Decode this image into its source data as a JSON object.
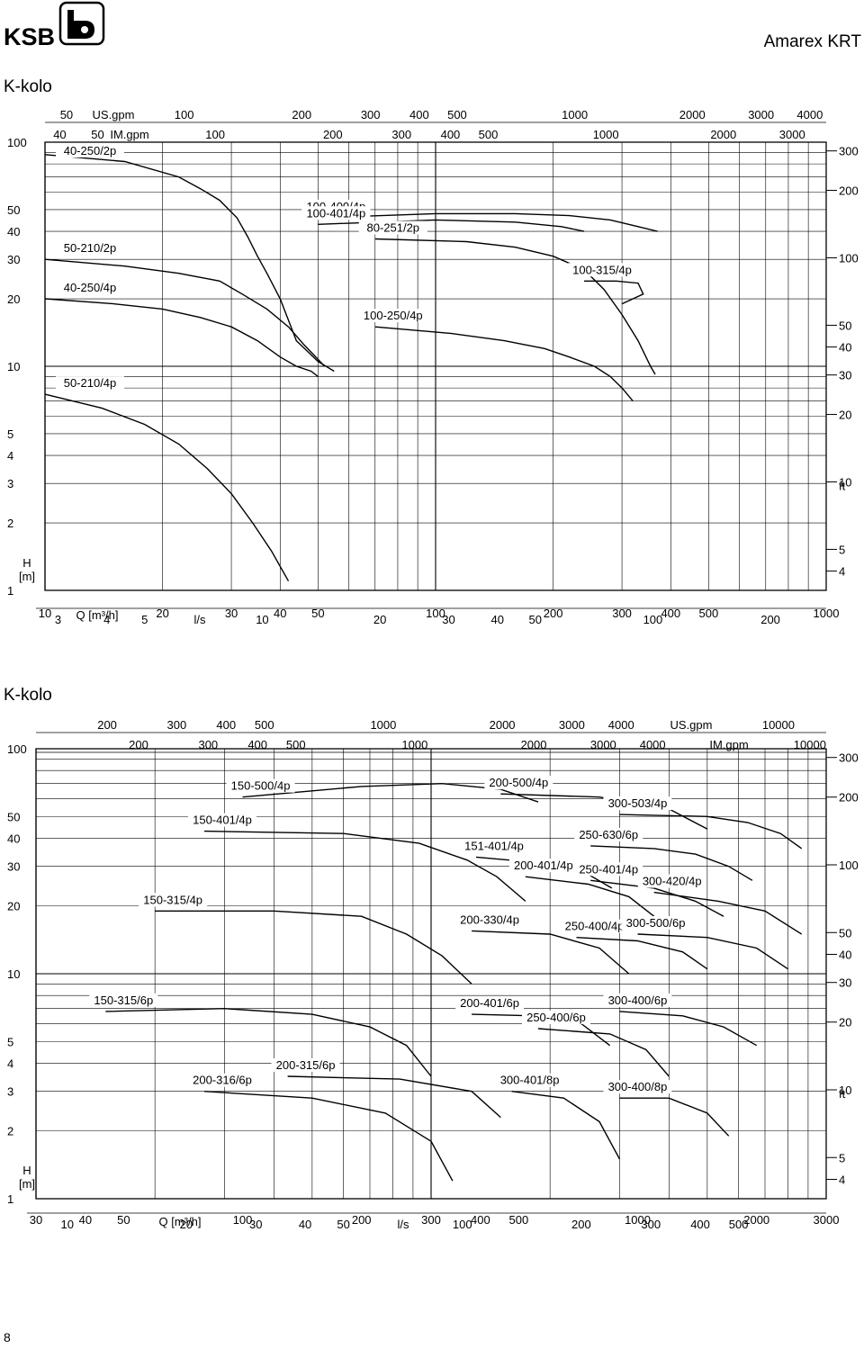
{
  "header": {
    "brand": "KSB",
    "product_name": "Amarex",
    "product_suffix": "KRT"
  },
  "page_number": "8",
  "chart_data": [
    {
      "type": "line",
      "title": "K-kolo",
      "scale": "log-log",
      "grid": true,
      "xlabel": "Q [m³/h]",
      "ylabel": "H [m]",
      "xlim": [
        10,
        1000
      ],
      "ylim": [
        1,
        100
      ],
      "x_ticks": [
        10,
        20,
        30,
        40,
        50,
        100,
        200,
        300,
        400,
        500,
        1000
      ],
      "y_ticks": [
        1,
        2,
        3,
        4,
        5,
        10,
        20,
        30,
        40,
        50,
        100
      ],
      "secondary_axes": {
        "us_gpm": {
          "label": "US.gpm",
          "ticks": [
            50,
            100,
            200,
            300,
            400,
            500,
            1000,
            2000,
            3000,
            4000
          ]
        },
        "im_gpm": {
          "label": "IM.gpm",
          "ticks": [
            40,
            50,
            100,
            200,
            300,
            400,
            500,
            1000,
            2000,
            3000
          ]
        },
        "l_s": {
          "label": "l/s",
          "ticks": [
            3,
            4,
            5,
            10,
            20,
            30,
            40,
            50,
            100,
            200
          ]
        },
        "ft": {
          "label": "ft",
          "ticks": [
            4,
            5,
            10,
            20,
            30,
            40,
            50,
            100,
            200,
            300
          ]
        }
      },
      "series": [
        {
          "name": "40-250/2p",
          "points": [
            [
              10,
              88
            ],
            [
              16,
              82
            ],
            [
              22,
              70
            ],
            [
              25,
              62
            ],
            [
              28,
              55
            ],
            [
              31,
              46
            ],
            [
              33,
              38
            ],
            [
              35,
              31
            ],
            [
              37,
              26
            ],
            [
              40,
              20
            ],
            [
              44,
              13
            ],
            [
              50,
              10.5
            ],
            [
              55,
              9.5
            ]
          ]
        },
        {
          "name": "50-210/2p",
          "points": [
            [
              10,
              30
            ],
            [
              16,
              28
            ],
            [
              22,
              26
            ],
            [
              28,
              24
            ],
            [
              32,
              21
            ],
            [
              37,
              18
            ],
            [
              42,
              15
            ],
            [
              46,
              12.5
            ],
            [
              52,
              10
            ]
          ]
        },
        {
          "name": "80-251/2p",
          "points": [
            [
              70,
              37
            ],
            [
              120,
              36
            ],
            [
              160,
              34
            ],
            [
              200,
              31
            ],
            [
              240,
              27
            ],
            [
              270,
              22
            ],
            [
              300,
              17
            ],
            [
              330,
              13
            ],
            [
              355,
              10
            ],
            [
              365,
              9.2
            ]
          ]
        },
        {
          "name": "100-400/4p",
          "points": [
            [
              50,
              46
            ],
            [
              100,
              48
            ],
            [
              160,
              48
            ],
            [
              220,
              47
            ],
            [
              280,
              45
            ],
            [
              330,
              42
            ],
            [
              370,
              40
            ]
          ]
        },
        {
          "name": "100-401/4p",
          "points": [
            [
              50,
              43
            ],
            [
              100,
              45
            ],
            [
              160,
              44
            ],
            [
              210,
              42
            ],
            [
              240,
              40
            ]
          ]
        },
        {
          "name": "100-315/4p",
          "points": [
            [
              240,
              24
            ],
            [
              290,
              24
            ],
            [
              330,
              23.5
            ],
            [
              340,
              21
            ],
            [
              300,
              19
            ]
          ]
        },
        {
          "name": "100-250/4p",
          "points": [
            [
              70,
              15
            ],
            [
              110,
              14
            ],
            [
              150,
              13
            ],
            [
              190,
              12
            ],
            [
              220,
              11
            ],
            [
              255,
              10
            ],
            [
              280,
              9
            ],
            [
              300,
              8
            ],
            [
              320,
              7
            ]
          ]
        },
        {
          "name": "40-250/4p",
          "points": [
            [
              10,
              20
            ],
            [
              15,
              19
            ],
            [
              20,
              18
            ],
            [
              25,
              16.5
            ],
            [
              30,
              15
            ],
            [
              35,
              13
            ],
            [
              40,
              11
            ],
            [
              44,
              10
            ],
            [
              48,
              9.5
            ],
            [
              50,
              9
            ]
          ]
        },
        {
          "name": "50-210/4p",
          "points": [
            [
              10,
              7.5
            ],
            [
              14,
              6.5
            ],
            [
              18,
              5.5
            ],
            [
              22,
              4.5
            ],
            [
              26,
              3.5
            ],
            [
              30,
              2.7
            ],
            [
              34,
              2
            ],
            [
              38,
              1.5
            ],
            [
              42,
              1.1
            ]
          ]
        }
      ]
    },
    {
      "type": "line",
      "title": "K-kolo",
      "scale": "log-log",
      "grid": true,
      "xlabel": "Q [m³/h]",
      "ylabel": "H [m]",
      "xlim": [
        30,
        3000
      ],
      "ylim": [
        1,
        100
      ],
      "x_ticks": [
        30,
        40,
        50,
        100,
        200,
        300,
        400,
        500,
        1000,
        2000,
        3000
      ],
      "y_ticks": [
        1,
        2,
        3,
        4,
        5,
        10,
        20,
        30,
        40,
        50,
        100
      ],
      "secondary_axes": {
        "us_gpm": {
          "label": "US.gpm",
          "ticks": [
            200,
            300,
            400,
            500,
            1000,
            2000,
            3000,
            4000,
            10000
          ]
        },
        "im_gpm": {
          "label": "IM.gpm",
          "ticks": [
            200,
            300,
            400,
            500,
            1000,
            2000,
            3000,
            4000,
            10000
          ]
        },
        "l_s": {
          "label": "l/s",
          "ticks": [
            10,
            20,
            30,
            40,
            50,
            100,
            200,
            300,
            400,
            500
          ]
        },
        "ft": {
          "label": "ft",
          "ticks": [
            4,
            5,
            10,
            20,
            30,
            40,
            50,
            100,
            200,
            300
          ]
        }
      },
      "series": [
        {
          "name": "150-500/4p",
          "points": [
            [
              100,
              61
            ],
            [
              200,
              68
            ],
            [
              320,
              70
            ],
            [
              450,
              66
            ],
            [
              560,
              58
            ]
          ]
        },
        {
          "name": "200-500/4p",
          "points": [
            [
              450,
              63
            ],
            [
              800,
              61
            ],
            [
              1200,
              54
            ],
            [
              1500,
              44
            ]
          ]
        },
        {
          "name": "300-503/4p",
          "points": [
            [
              900,
              51
            ],
            [
              1500,
              50
            ],
            [
              1900,
              47
            ],
            [
              2300,
              42
            ],
            [
              2600,
              36
            ]
          ]
        },
        {
          "name": "250-630/6p",
          "points": [
            [
              760,
              37
            ],
            [
              1100,
              36
            ],
            [
              1400,
              34
            ],
            [
              1700,
              30
            ],
            [
              1950,
              26
            ]
          ]
        },
        {
          "name": "150-401/4p",
          "points": [
            [
              80,
              43
            ],
            [
              180,
              42
            ],
            [
              280,
              38
            ],
            [
              370,
              32
            ],
            [
              440,
              27
            ],
            [
              520,
              21
            ]
          ]
        },
        {
          "name": "151-401/4p",
          "points": [
            [
              390,
              33
            ],
            [
              580,
              31
            ],
            [
              740,
              28
            ],
            [
              860,
              24
            ]
          ]
        },
        {
          "name": "200-401/4p",
          "points": [
            [
              520,
              27
            ],
            [
              750,
              25
            ],
            [
              950,
              22
            ],
            [
              1100,
              18
            ]
          ]
        },
        {
          "name": "250-401/4p",
          "points": [
            [
              760,
              26
            ],
            [
              1100,
              24
            ],
            [
              1400,
              21
            ],
            [
              1650,
              18
            ]
          ]
        },
        {
          "name": "300-420/4p",
          "points": [
            [
              1100,
              23
            ],
            [
              1600,
              21
            ],
            [
              2100,
              19
            ],
            [
              2600,
              15
            ]
          ]
        },
        {
          "name": "150-315/4p",
          "points": [
            [
              60,
              19
            ],
            [
              120,
              19
            ],
            [
              200,
              18
            ],
            [
              260,
              15
            ],
            [
              320,
              12
            ],
            [
              380,
              9
            ]
          ]
        },
        {
          "name": "200-330/4p",
          "points": [
            [
              380,
              15.5
            ],
            [
              600,
              15
            ],
            [
              800,
              13
            ],
            [
              950,
              10
            ]
          ]
        },
        {
          "name": "250-400/4p",
          "points": [
            [
              700,
              14.5
            ],
            [
              1000,
              14
            ],
            [
              1300,
              12.5
            ],
            [
              1500,
              10.5
            ]
          ]
        },
        {
          "name": "300-500/6p",
          "points": [
            [
              1000,
              15
            ],
            [
              1500,
              14.5
            ],
            [
              2000,
              13
            ],
            [
              2400,
              10.5
            ]
          ]
        },
        {
          "name": "150-315/6p",
          "points": [
            [
              45,
              6.8
            ],
            [
              90,
              7
            ],
            [
              150,
              6.6
            ],
            [
              210,
              5.8
            ],
            [
              260,
              4.8
            ],
            [
              300,
              3.5
            ]
          ]
        },
        {
          "name": "200-401/6p",
          "points": [
            [
              380,
              6.6
            ],
            [
              550,
              6.5
            ],
            [
              720,
              6
            ],
            [
              850,
              4.8
            ]
          ]
        },
        {
          "name": "300-400/6p",
          "points": [
            [
              900,
              6.8
            ],
            [
              1300,
              6.5
            ],
            [
              1650,
              5.8
            ],
            [
              2000,
              4.8
            ]
          ]
        },
        {
          "name": "250-400/6p",
          "points": [
            [
              560,
              5.7
            ],
            [
              850,
              5.4
            ],
            [
              1050,
              4.6
            ],
            [
              1200,
              3.5
            ]
          ]
        },
        {
          "name": "200-315/6p",
          "points": [
            [
              130,
              3.5
            ],
            [
              250,
              3.4
            ],
            [
              380,
              3
            ],
            [
              450,
              2.3
            ]
          ]
        },
        {
          "name": "200-316/6p",
          "points": [
            [
              80,
              3
            ],
            [
              150,
              2.8
            ],
            [
              230,
              2.4
            ],
            [
              300,
              1.8
            ],
            [
              340,
              1.2
            ]
          ]
        },
        {
          "name": "300-401/8p",
          "points": [
            [
              480,
              3
            ],
            [
              650,
              2.8
            ],
            [
              800,
              2.2
            ],
            [
              900,
              1.5
            ]
          ]
        },
        {
          "name": "300-400/8p",
          "points": [
            [
              900,
              2.8
            ],
            [
              1200,
              2.8
            ],
            [
              1500,
              2.4
            ],
            [
              1700,
              1.9
            ]
          ]
        }
      ]
    }
  ]
}
